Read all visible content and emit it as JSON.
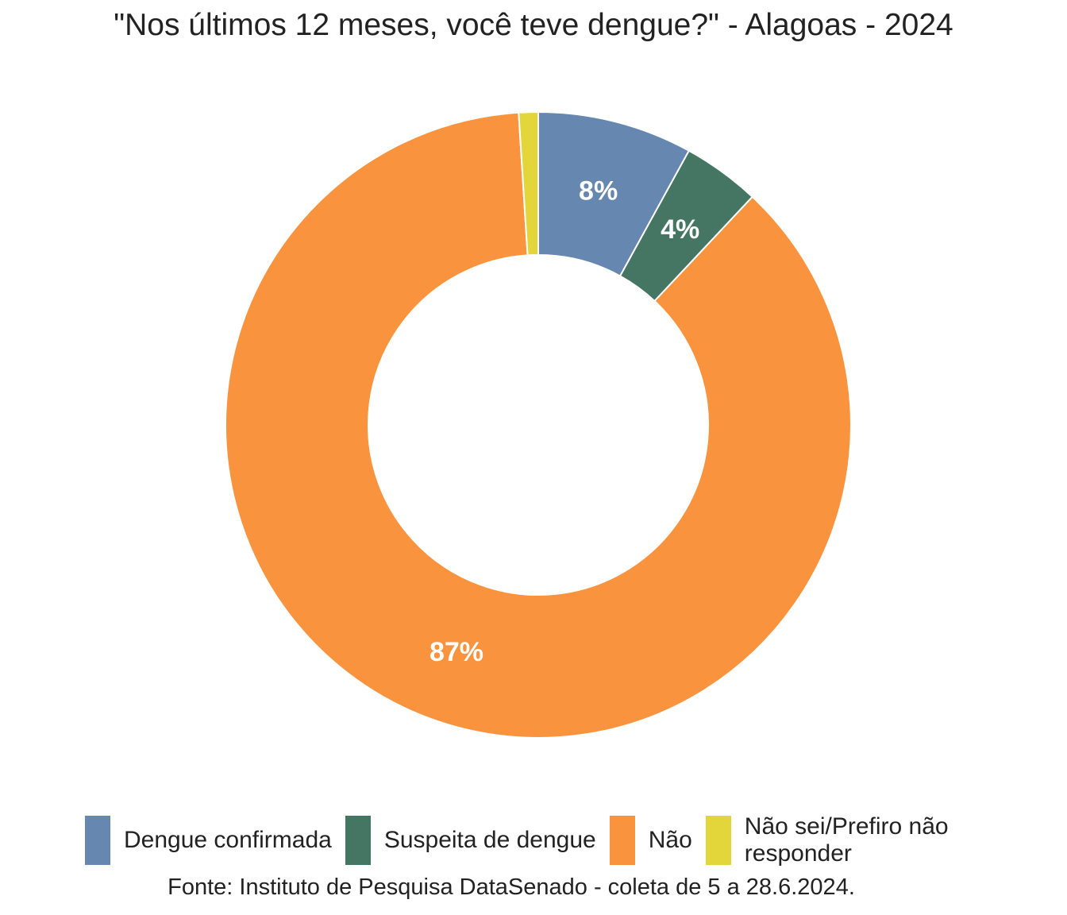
{
  "chart_data": {
    "type": "pie",
    "donut": true,
    "title": "\"Nos últimos 12 meses, você teve dengue?\" - Alagoas - 2024",
    "categories": [
      "Dengue confirmada",
      "Suspeita de dengue",
      "Não",
      "Não sei/Prefiro não responder"
    ],
    "values": [
      8,
      4,
      87,
      1
    ],
    "labels": [
      "8%",
      "4%",
      "87%",
      ""
    ],
    "colors": [
      "#6587b0",
      "#447663",
      "#f9933e",
      "#e3d63a"
    ],
    "legend_position": "bottom",
    "source": "Fonte: Instituto de Pesquisa DataSenado - coleta de 5 a 28.6.2024."
  }
}
